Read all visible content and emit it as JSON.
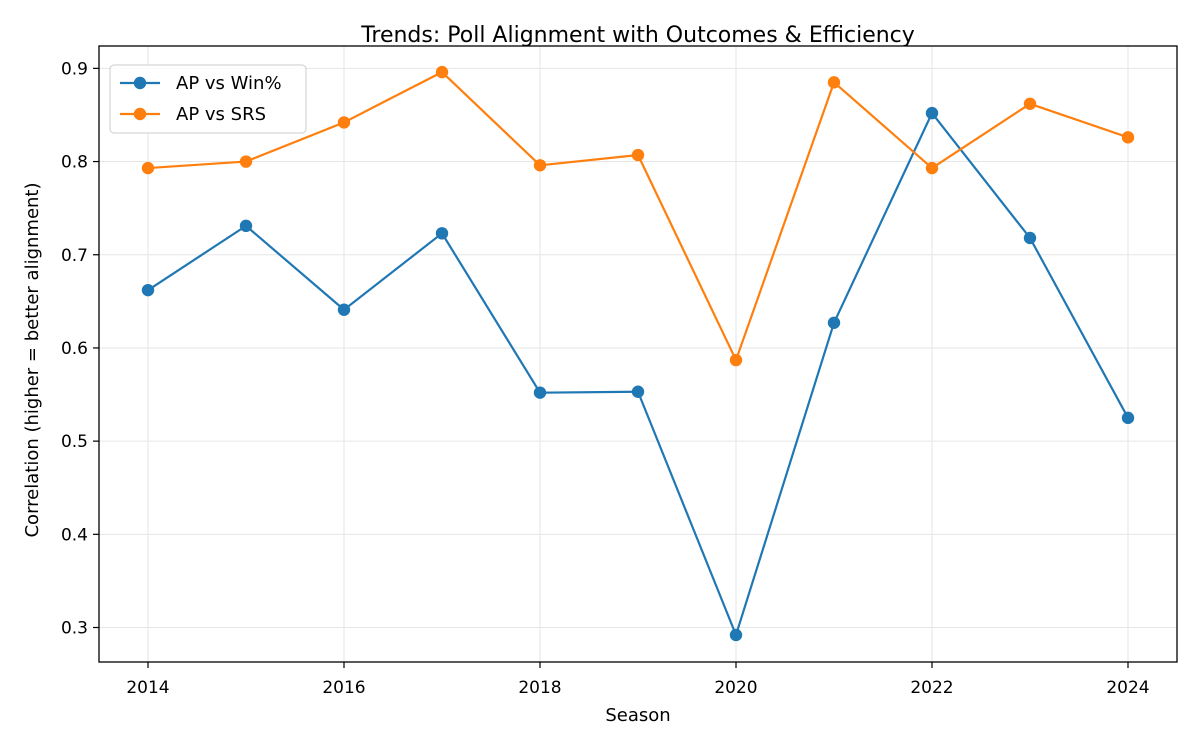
{
  "chart_data": {
    "type": "line",
    "title": "Trends: Poll Alignment with Outcomes & Efficiency",
    "xlabel": "Season",
    "ylabel": "Correlation (higher = better alignment)",
    "x": [
      2014,
      2015,
      2016,
      2017,
      2018,
      2019,
      2020,
      2021,
      2022,
      2023,
      2024
    ],
    "xlim": [
      2013.5,
      2024.5
    ],
    "ylim": [
      0.263,
      0.924
    ],
    "xticks": [
      2014,
      2016,
      2018,
      2020,
      2022,
      2024
    ],
    "yticks": [
      0.3,
      0.4,
      0.5,
      0.6,
      0.7,
      0.8,
      0.9
    ],
    "grid": true,
    "legend_position": "upper-left",
    "series": [
      {
        "name": "AP vs Win%",
        "color": "#1f77b4",
        "values": [
          0.662,
          0.731,
          0.641,
          0.723,
          0.552,
          0.553,
          0.292,
          0.627,
          0.852,
          0.718,
          0.525
        ]
      },
      {
        "name": "AP vs SRS",
        "color": "#ff7f0e",
        "values": [
          0.793,
          0.8,
          0.842,
          0.896,
          0.796,
          0.807,
          0.587,
          0.885,
          0.793,
          0.862,
          0.826
        ]
      }
    ]
  }
}
